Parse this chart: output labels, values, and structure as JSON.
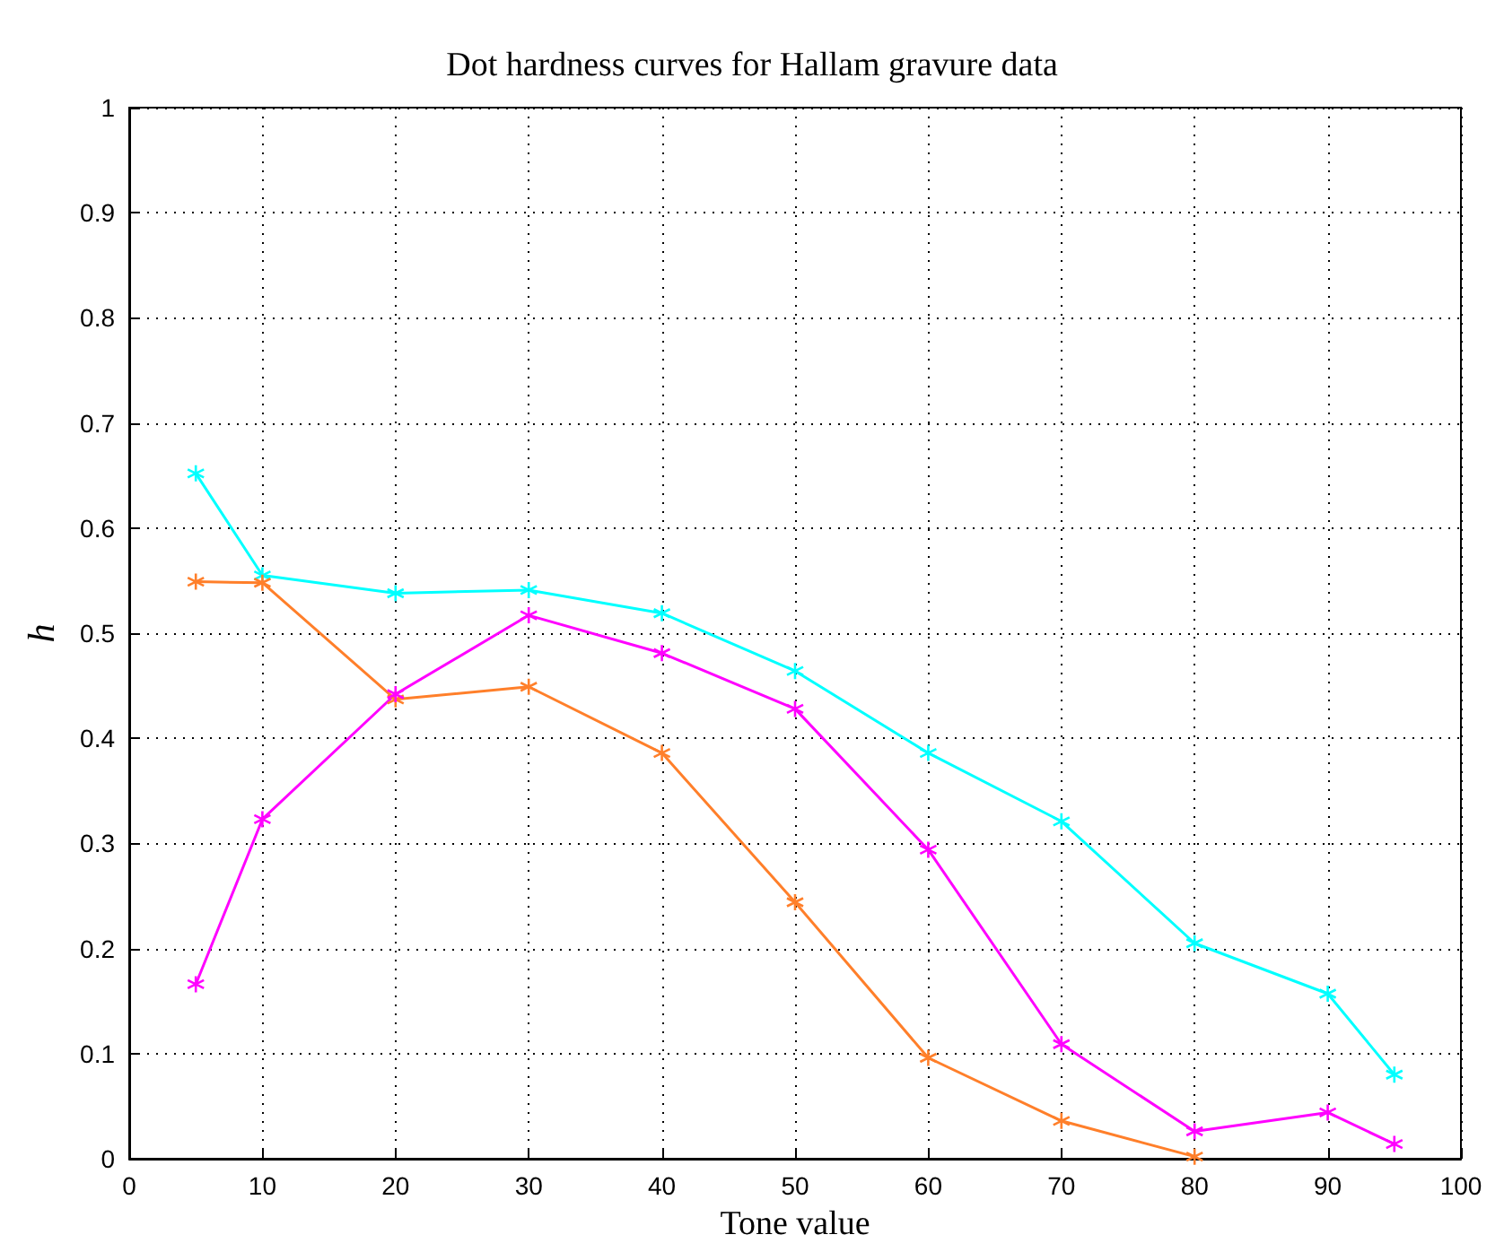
{
  "chart_data": {
    "type": "line",
    "title": "Dot hardness curves for Hallam gravure data",
    "xlabel": "Tone value",
    "ylabel": "h",
    "x": [
      5,
      10,
      20,
      30,
      40,
      50,
      60,
      70,
      80,
      90,
      95
    ],
    "series": [
      {
        "color": "#00ffff",
        "values": [
          0.652,
          0.555,
          0.538,
          0.541,
          0.519,
          0.464,
          0.386,
          0.321,
          0.205,
          0.157,
          0.08
        ]
      },
      {
        "color": "#ff7f2a",
        "values": [
          0.549,
          0.548,
          0.437,
          0.449,
          0.386,
          0.244,
          0.096,
          0.036,
          0.002,
          null,
          null
        ]
      },
      {
        "color": "#ff00ff",
        "values": [
          0.166,
          0.323,
          0.442,
          0.517,
          0.481,
          0.428,
          0.294,
          0.109,
          0.026,
          0.044,
          0.014
        ]
      }
    ],
    "xlim": [
      0,
      100
    ],
    "xticks": [
      0,
      10,
      20,
      30,
      40,
      50,
      60,
      70,
      80,
      90,
      100
    ],
    "ylim": [
      0,
      1
    ],
    "yticks": [
      0,
      0.1,
      0.2,
      0.3,
      0.4,
      0.5,
      0.6,
      0.7,
      0.8,
      0.9,
      1
    ],
    "grid": true,
    "marker": "cross",
    "line_style": "solid"
  }
}
